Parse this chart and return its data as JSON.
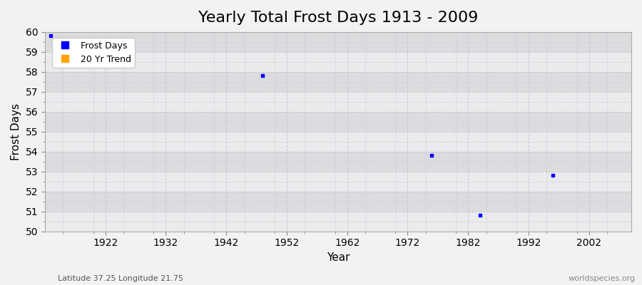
{
  "title": "Yearly Total Frost Days 1913 - 2009",
  "xlabel": "Year",
  "ylabel": "Frost Days",
  "xlim": [
    1912,
    2009
  ],
  "ylim": [
    50,
    60
  ],
  "yticks": [
    50,
    51,
    52,
    53,
    54,
    55,
    56,
    57,
    58,
    59,
    60
  ],
  "xticks": [
    1922,
    1932,
    1942,
    1952,
    1962,
    1972,
    1982,
    1992,
    2002
  ],
  "data_points": [
    {
      "year": 1913,
      "value": 59.8
    },
    {
      "year": 1948,
      "value": 57.8
    },
    {
      "year": 1976,
      "value": 53.8
    },
    {
      "year": 1984,
      "value": 50.8
    },
    {
      "year": 1996,
      "value": 52.8
    }
  ],
  "point_color": "#0000ff",
  "point_size": 6,
  "legend_frost_color": "#0000ff",
  "legend_trend_color": "#ffa500",
  "bg_light": "#ebebed",
  "bg_dark": "#dcdcdf",
  "grid_color": "#c8c8d0",
  "fig_bg": "#f2f2f2",
  "subtitle_left": "Latitude 37.25 Longitude 21.75",
  "subtitle_right": "worldspecies.org",
  "title_fontsize": 16,
  "label_fontsize": 11,
  "tick_fontsize": 10
}
